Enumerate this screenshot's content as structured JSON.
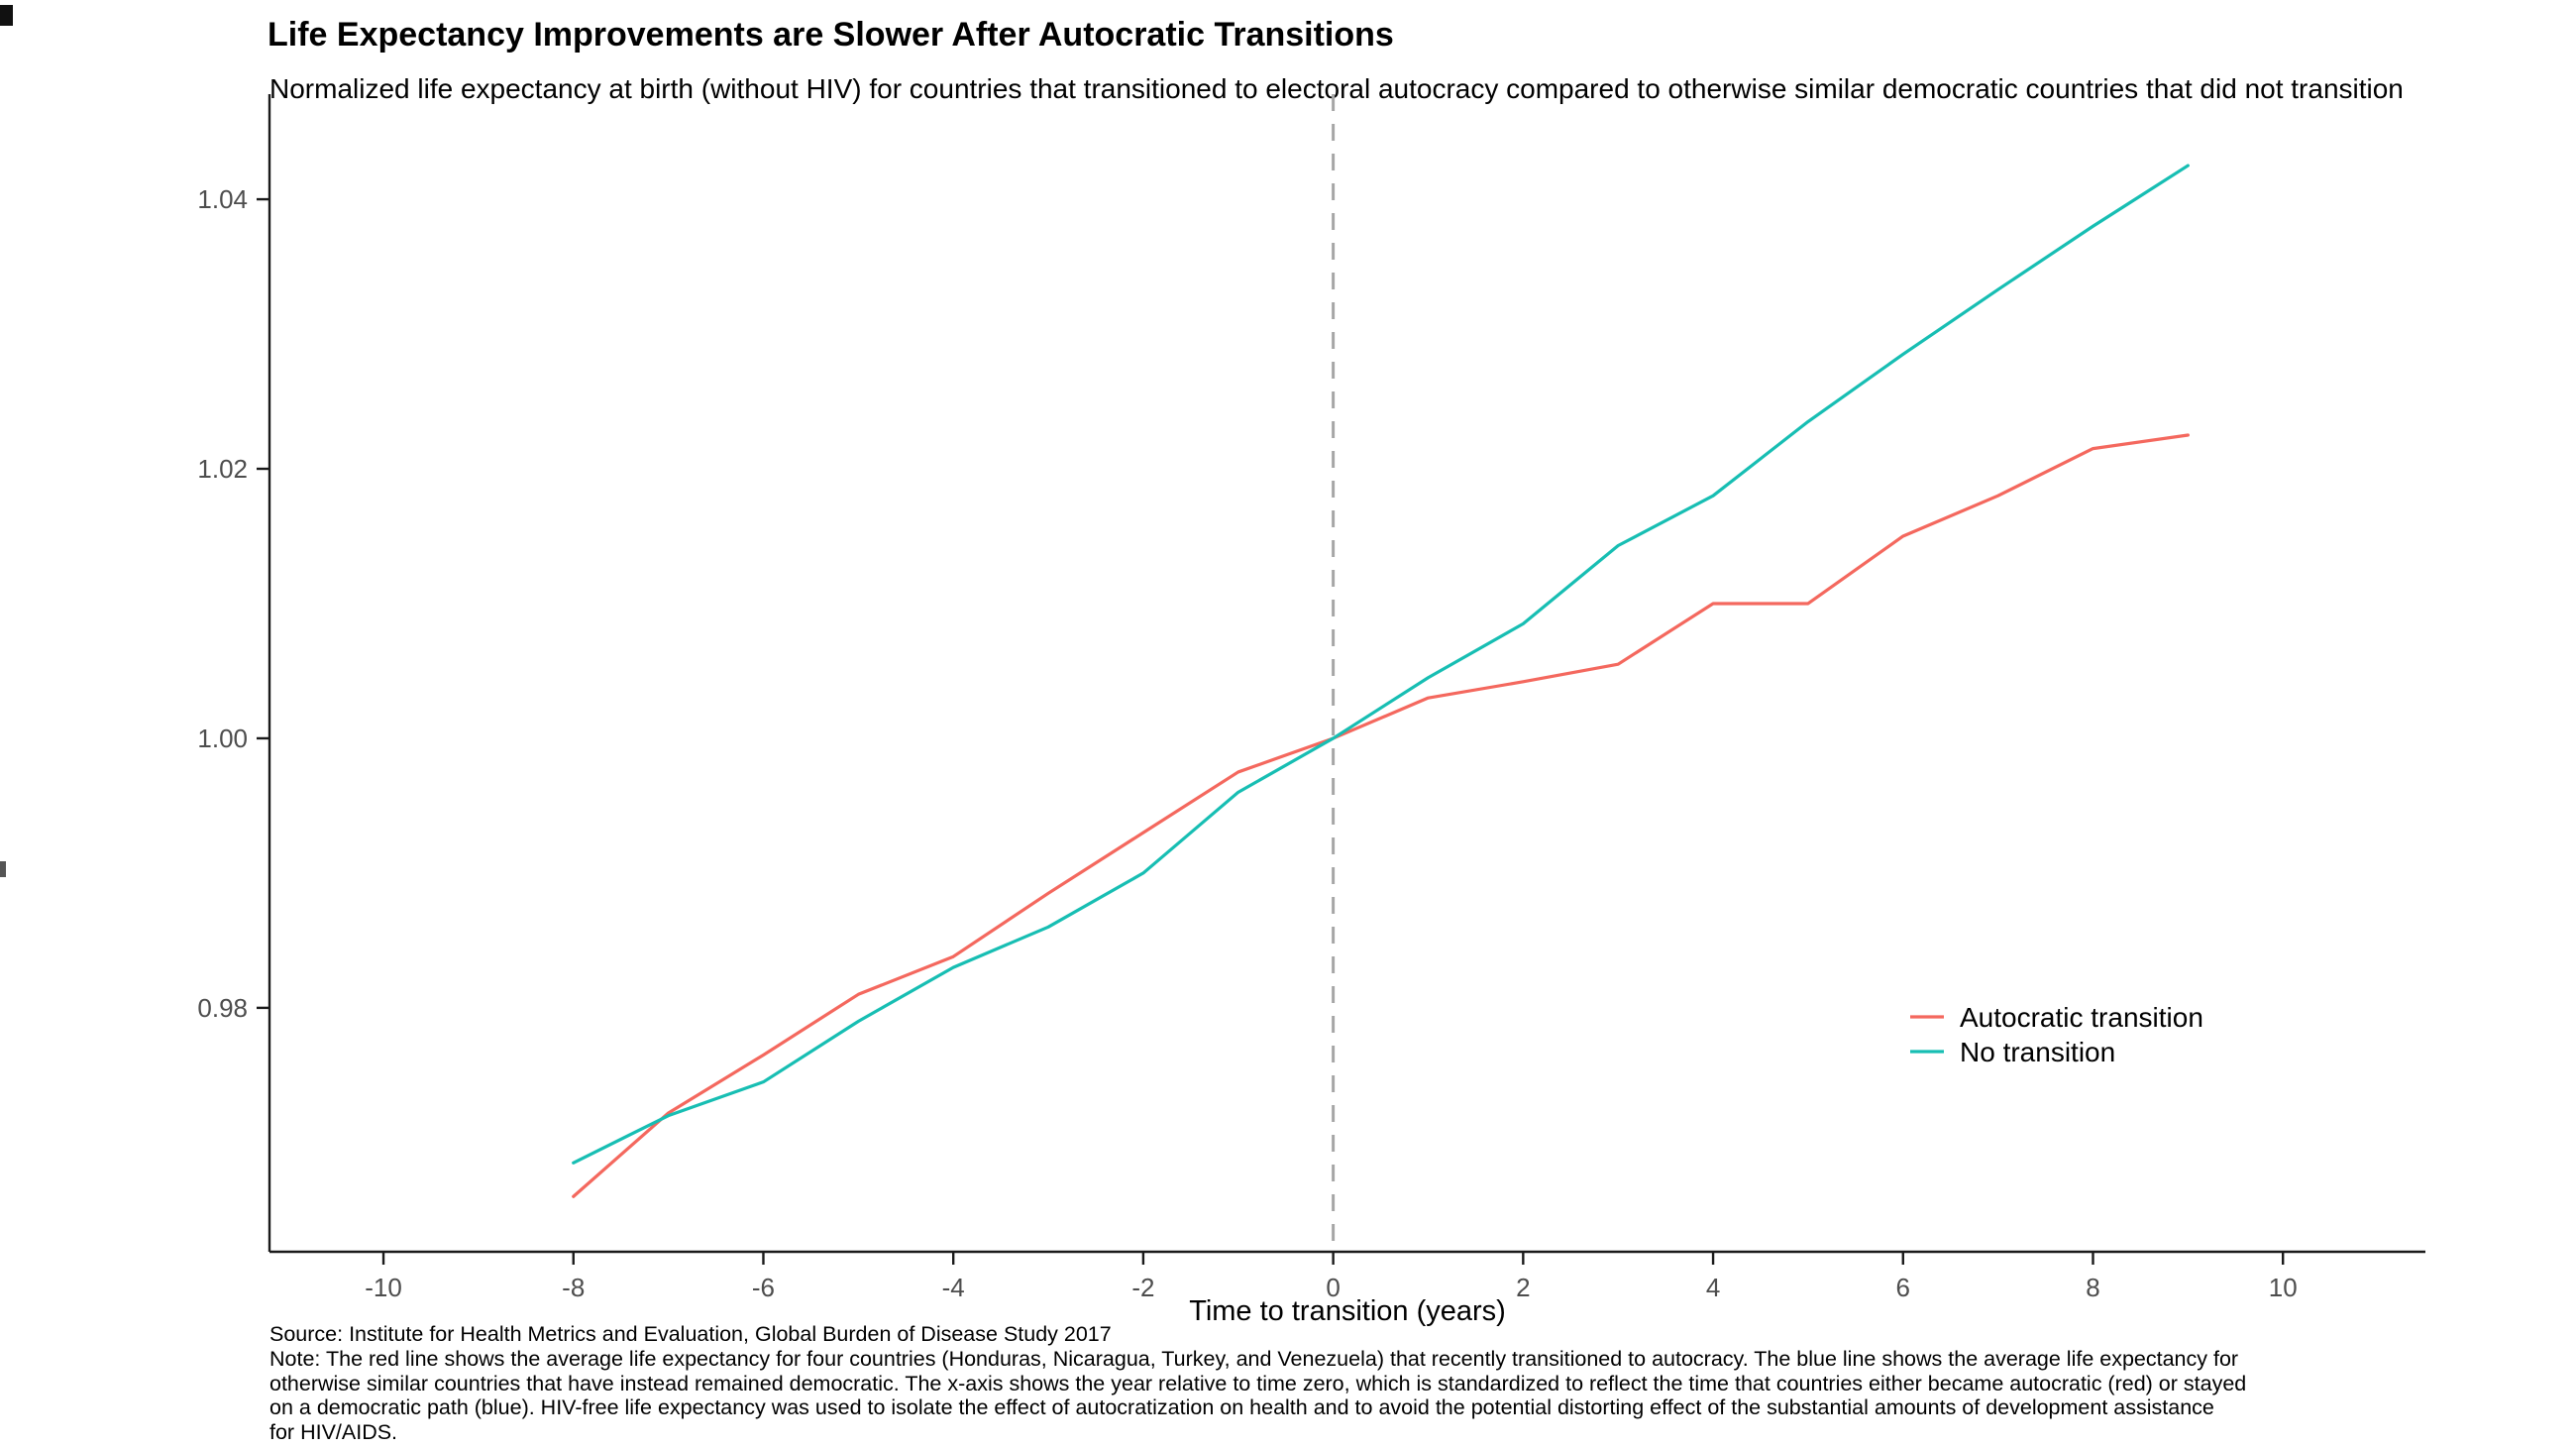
{
  "chart_data": {
    "type": "line",
    "title": "Life Expectancy Improvements are Slower After Autocratic Transitions",
    "subtitle": "Normalized life expectancy at birth (without HIV) for countries that transitioned to electoral autocracy compared to otherwise similar democratic countries that did not transition",
    "xlabel": "Time to transition (years)",
    "ylabel": "",
    "x": [
      -8,
      -7,
      -6,
      -5,
      -4,
      -3,
      -2,
      -1,
      0,
      1,
      2,
      3,
      4,
      5,
      6,
      7,
      8,
      9
    ],
    "series": [
      {
        "name": "Autocratic transition",
        "color": "#F4685E",
        "values": [
          0.966,
          0.9722,
          0.9765,
          0.981,
          0.9838,
          0.9885,
          0.993,
          0.9975,
          1.0,
          1.003,
          1.0042,
          1.0055,
          1.01,
          1.01,
          1.015,
          1.018,
          1.0215,
          1.0225
        ]
      },
      {
        "name": "No transition",
        "color": "#17BEB3",
        "values": [
          0.9685,
          0.972,
          0.9745,
          0.979,
          0.983,
          0.986,
          0.99,
          0.996,
          1.0,
          1.0045,
          1.0085,
          1.0143,
          1.018,
          1.0235,
          1.0285,
          1.0333,
          1.038,
          1.0425
        ]
      }
    ],
    "x_ticks": [
      -10,
      -8,
      -6,
      -4,
      -2,
      0,
      2,
      4,
      6,
      8,
      10
    ],
    "y_ticks": [
      0.98,
      1.0,
      1.02,
      1.04
    ],
    "xlim": [
      -11.2,
      11.5
    ],
    "ylim": [
      0.9619,
      1.0478
    ],
    "reference_line_x": 0,
    "grid": false,
    "legend_position": "inside-right",
    "colors": {
      "axis": "#1a1a1a",
      "tick_label": "#4d4d4d",
      "reference_line": "#a6a6a6"
    },
    "caption": {
      "source": "Source: Institute for Health Metrics and Evaluation, Global Burden of Disease Study 2017",
      "note_lines": [
        "Note: The red line shows the average life expectancy for four countries (Honduras, Nicaragua, Turkey, and Venezuela) that recently transitioned to autocracy. The blue line shows the average life expectancy for",
        "otherwise similar countries that have instead remained democratic. The x-axis shows the year relative to time zero, which is standardized to reflect the time that countries either became autocratic (red) or stayed",
        "on a democratic path (blue). HIV-free life expectancy was used to isolate the effect of autocratization on health and to avoid the potential distorting effect of the substantial amounts of development assistance",
        "for HIV/AIDS."
      ]
    }
  }
}
